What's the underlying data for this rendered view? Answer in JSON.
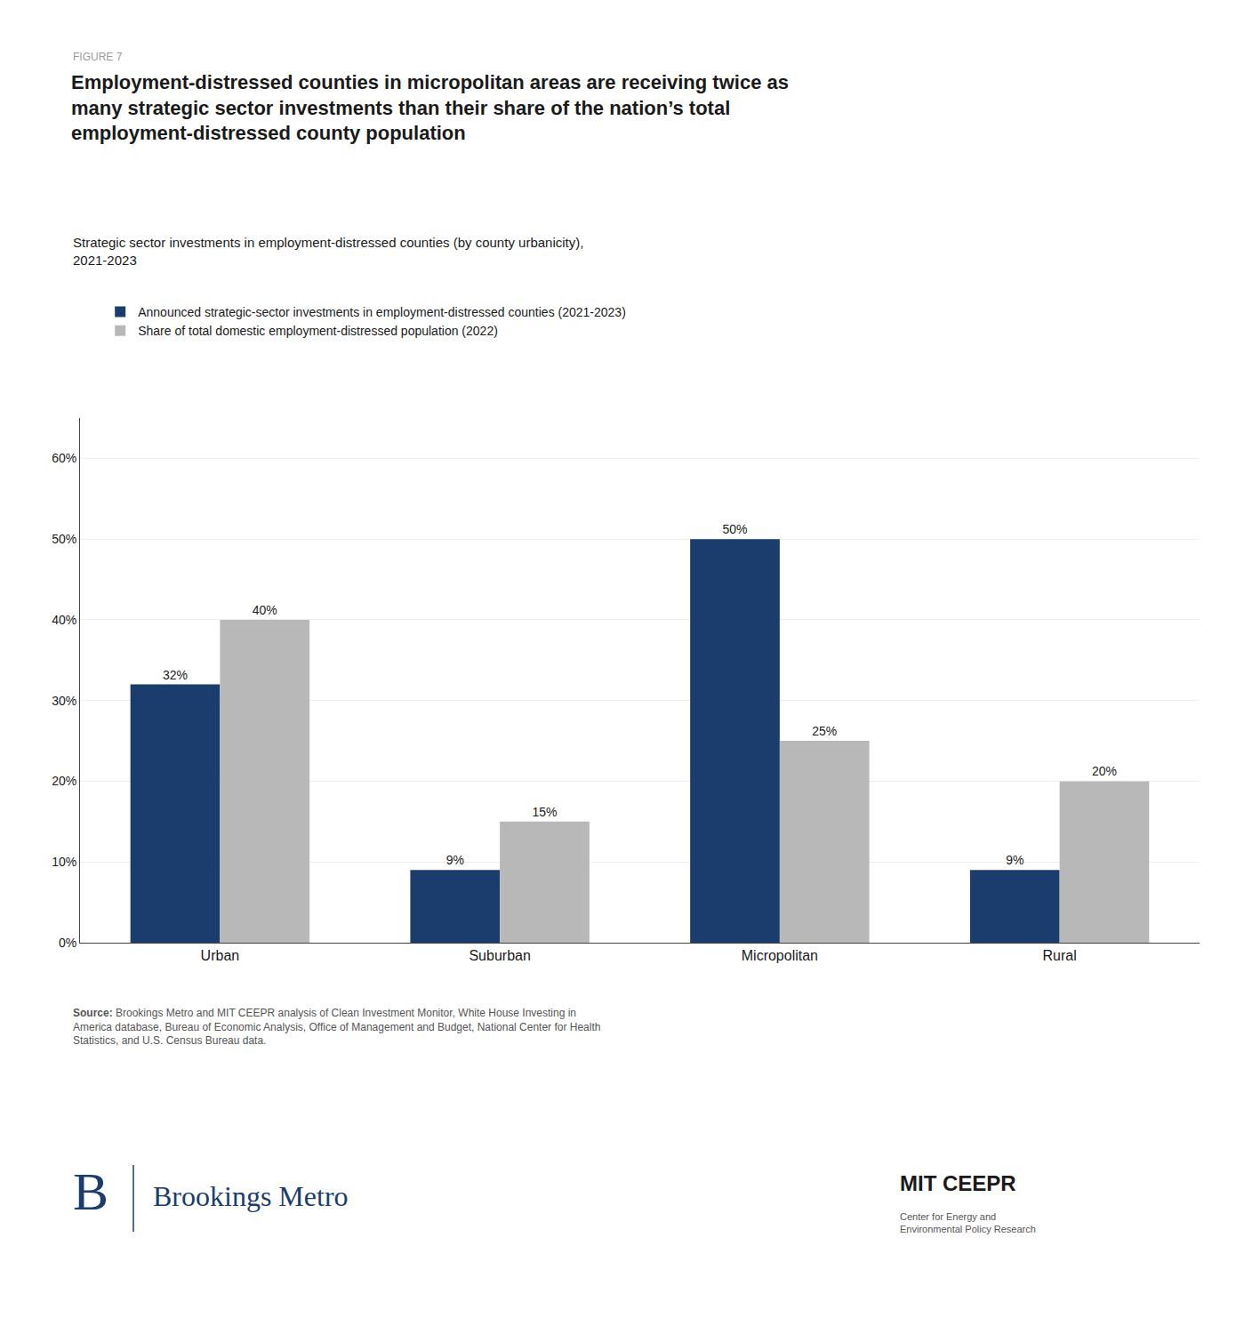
{
  "chart_data": {
    "type": "bar",
    "title": "Employment-distressed counties in micropolitan areas are receiving twice as\nmany strategic sector investments than their share of the nation’s total\nemployment-distressed county population",
    "subtitle": "Strategic sector investments in employment-distressed counties (by county urbanicity),\n2021-2023",
    "annotations": [
      "FIGURE 7",
      "Source:",
      " Brookings Metro and MIT CEEPR analysis of Clean Investment Monitor, White House Investing in\nAmerica database, Bureau of Economic Analysis, Office of Management and Budget, National Center for Health\nStatistics, and U.S. Census Bureau data.",
      "B",
      "Brookings Metro",
      "MIT",
      "CEEPR",
      "Center for Energy and\nEnvironmental Policy Research"
    ],
    "categories": [
      "Urban",
      "Suburban",
      "Micropolitan",
      "Rural"
    ],
    "series": [
      {
        "name": "Announced strategic-sector investments in employment-distressed counties (2021-2023)",
        "color": "#1b3d6e",
        "values": [
          32,
          9,
          50,
          9
        ],
        "value_labels": [
          "32%",
          "9%",
          "50%",
          "9%"
        ]
      },
      {
        "name": "Share of total domestic employment-distressed population (2022)",
        "color": "#b8b8b8",
        "values": [
          40,
          15,
          25,
          20
        ],
        "value_labels": [
          "40%",
          "15%",
          "25%",
          "20%"
        ]
      }
    ],
    "ylim": [
      0,
      65
    ],
    "yticks": [
      {
        "value": 0,
        "label": "0%"
      },
      {
        "value": 10,
        "label": "10%"
      },
      {
        "value": 20,
        "label": "20%"
      },
      {
        "value": 30,
        "label": "30%"
      },
      {
        "value": 40,
        "label": "40%"
      },
      {
        "value": 50,
        "label": "50%"
      },
      {
        "value": 60,
        "label": "60%"
      }
    ],
    "grid": true,
    "legend": "upper left",
    "data_labels": true
  }
}
